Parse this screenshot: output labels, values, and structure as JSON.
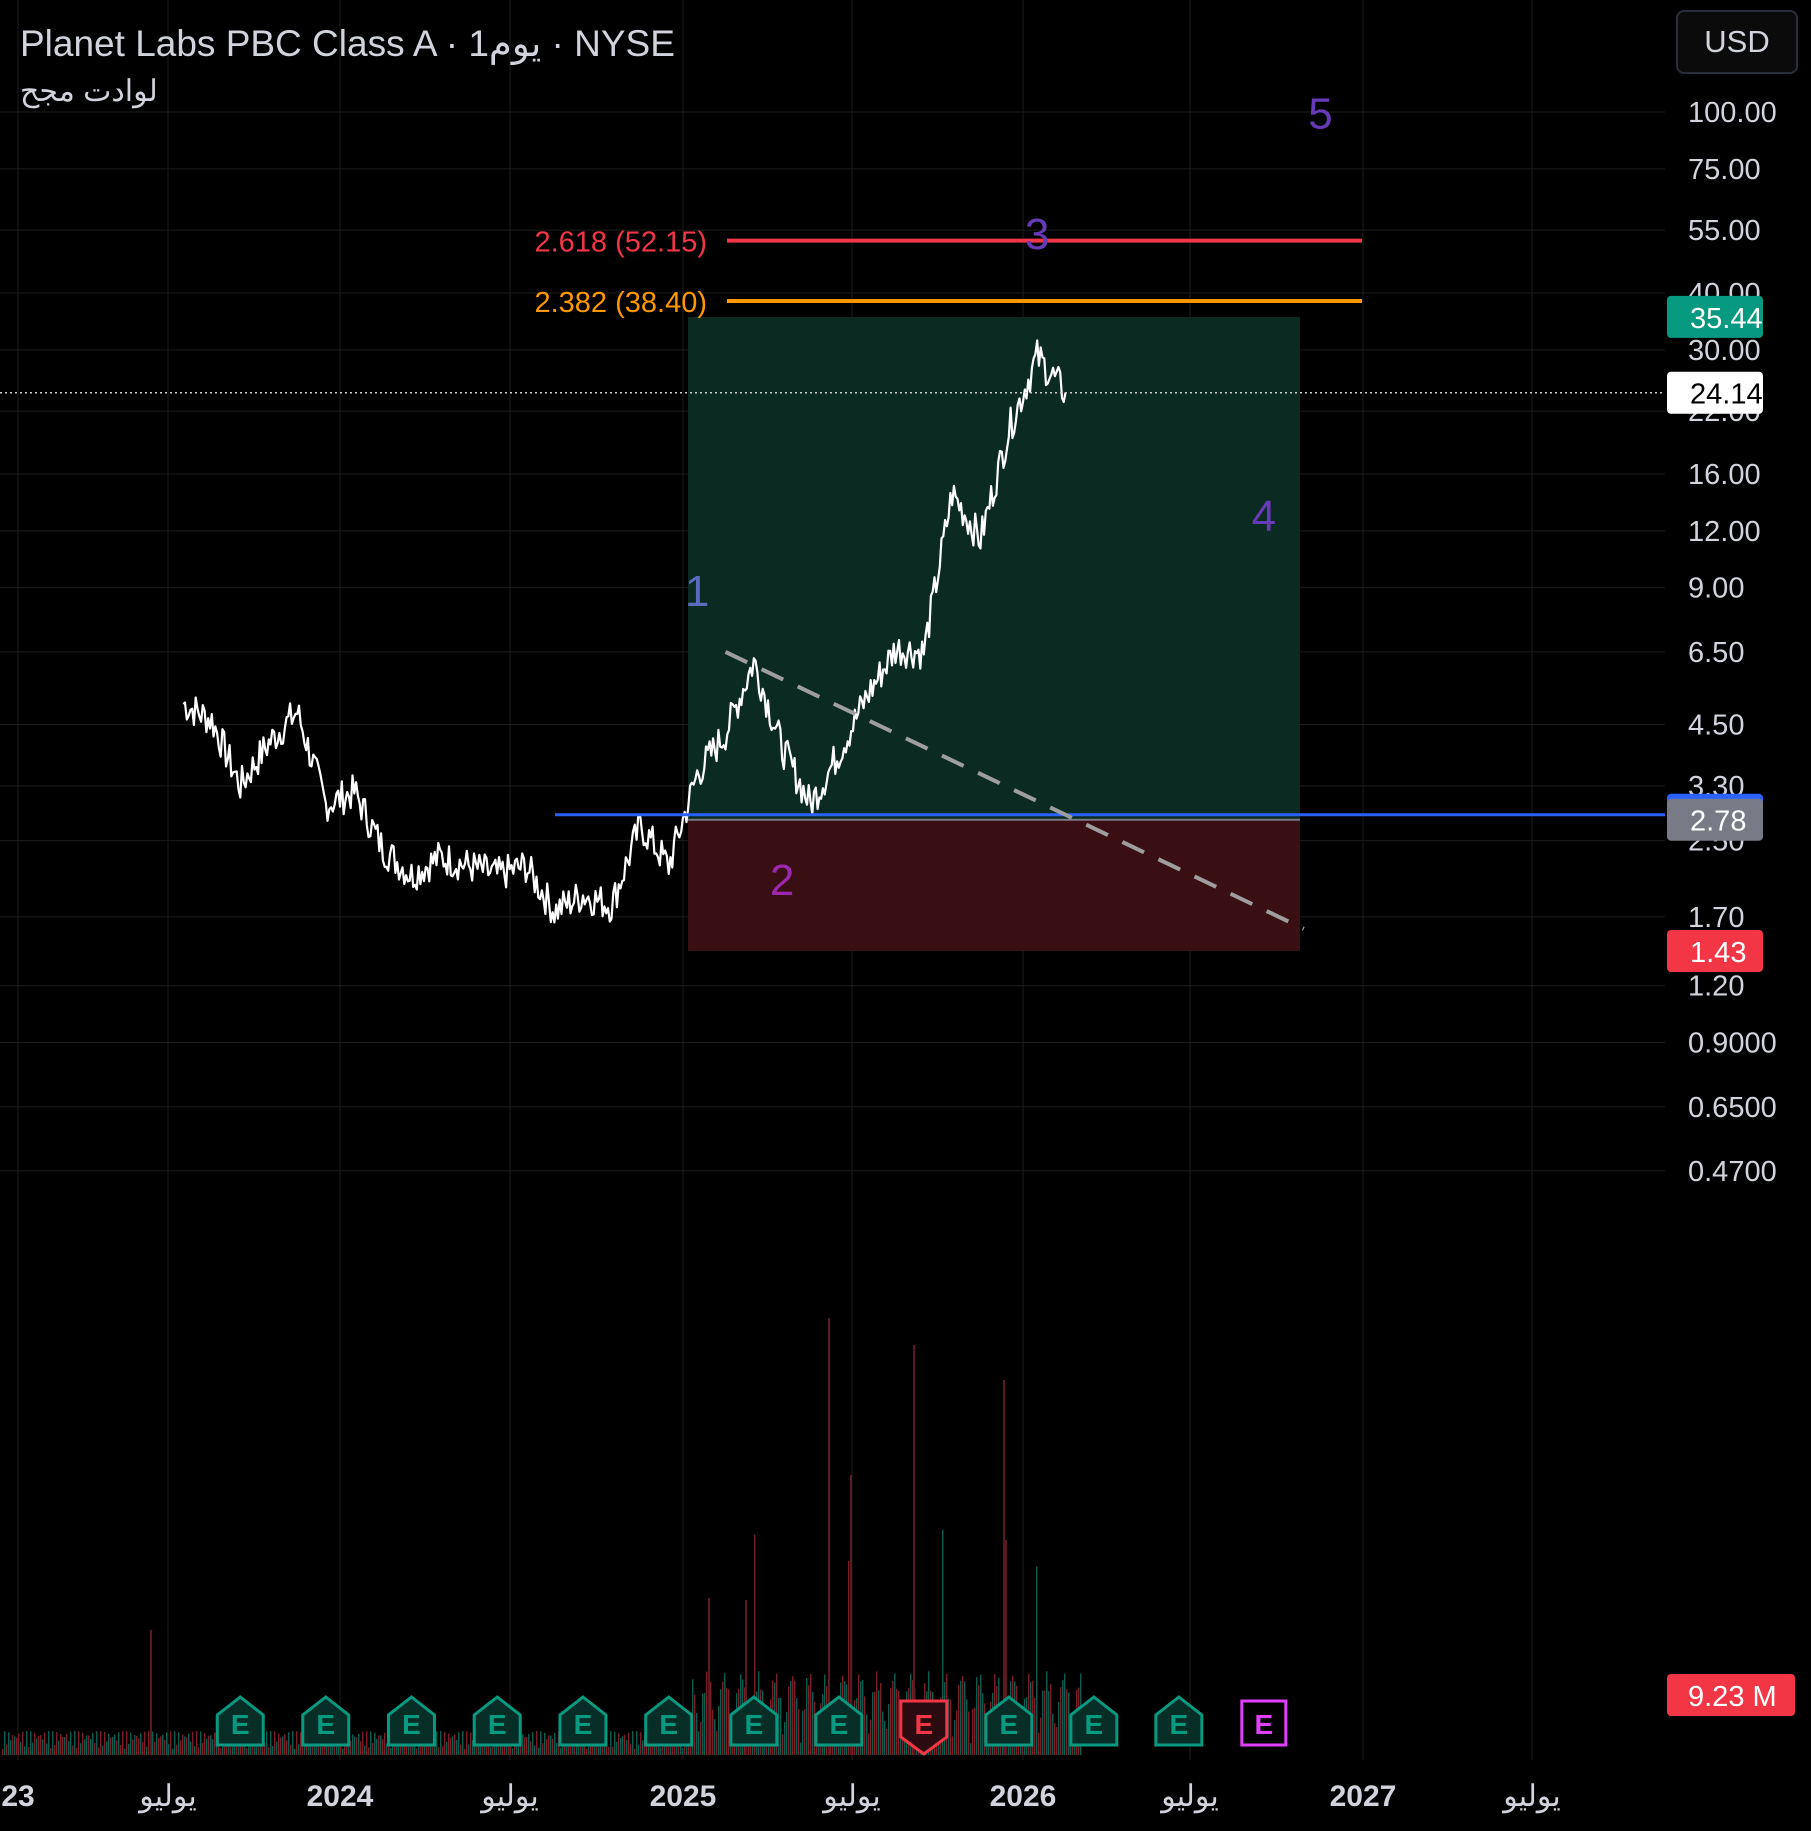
{
  "header": {
    "title": "Planet Labs PBC Class A · 1يوم · NYSE",
    "subtitle": "لوادت مجح",
    "currency": "USD"
  },
  "colors": {
    "background": "#000000",
    "grid": "#1c1c1c",
    "price_line": "#ffffff",
    "fib_2618": "#f23645",
    "fib_2382": "#ff9800",
    "support_line": "#2962ff",
    "profit_zone": "#0b2a22",
    "loss_zone": "#3a0f14",
    "trend_dashed": "#9e9e9e",
    "wave_label": "#7c4dff",
    "earnings_green": "#089981",
    "earnings_red": "#f23645",
    "earnings_magenta": "#e040fb"
  },
  "chart_data": {
    "type": "line",
    "scale": "log",
    "grid": true,
    "x_axis_ticks": [
      "23",
      "يوليو",
      "2024",
      "يوليو",
      "2025",
      "يوليو",
      "2026",
      "يوليو",
      "2027",
      "يوليو"
    ],
    "y_axis_ticks": [
      "100.00",
      "75.00",
      "55.00",
      "40.00",
      "30.00",
      "22.00",
      "16.00",
      "12.00",
      "9.00",
      "6.50",
      "4.50",
      "3.30",
      "2.50",
      "1.70",
      "1.20",
      "0.9000",
      "0.6500",
      "0.4700"
    ],
    "ylim": [
      0.35,
      120
    ],
    "x": [
      "2023-07",
      "2023-08",
      "2023-09",
      "2023-10",
      "2023-11",
      "2023-12",
      "2024-01",
      "2024-02",
      "2024-03",
      "2024-04",
      "2024-05",
      "2024-06",
      "2024-07",
      "2024-08",
      "2024-09",
      "2024-10",
      "2024-11",
      "2024-12",
      "2025-01",
      "2025-02",
      "2025-03",
      "2025-04",
      "2025-05",
      "2025-06",
      "2025-07",
      "2025-08",
      "2025-09",
      "2025-10",
      "2025-11",
      "2025-12",
      "2026-01",
      "2026-02"
    ],
    "series": [
      {
        "values": [
          5.0,
          4.6,
          3.3,
          4.1,
          4.8,
          3.0,
          3.2,
          2.4,
          2.1,
          2.3,
          2.2,
          2.1,
          2.2,
          1.75,
          1.9,
          1.8,
          2.7,
          2.2,
          3.5,
          4.3,
          6.2,
          4.0,
          3.0,
          3.9,
          5.2,
          6.6,
          6.5,
          14.5,
          11.5,
          20.0,
          29.0,
          24.14
        ]
      }
    ],
    "fib_levels": [
      {
        "label": "2.618 (52.15)",
        "value": 52.15
      },
      {
        "label": "2.382 (38.40)",
        "value": 38.4
      }
    ],
    "position": {
      "target": 35.44,
      "entry": 2.78,
      "stop": 1.43
    },
    "support": 2.85,
    "current_price": 24.14,
    "trendline": [
      {
        "x": "2025-02",
        "y": 6.5
      },
      {
        "x": "2026-09",
        "y": 1.6
      }
    ],
    "wave_labels": [
      {
        "label": "1",
        "x": "2025-01",
        "y": 8.2
      },
      {
        "label": "2",
        "x": "2025-04",
        "y": 1.9
      },
      {
        "label": "3",
        "x": "2026-01",
        "y": 50
      },
      {
        "label": "4",
        "x": "2026-09",
        "y": 12
      },
      {
        "label": "5",
        "x": "2026-11",
        "y": 92
      }
    ],
    "price_labels": [
      {
        "text": "35.44",
        "color": "#089981",
        "value": 35.44
      },
      {
        "text": "24.14",
        "color": "#ffffff",
        "value": 24.14
      },
      {
        "text": "2.85",
        "color": "#2962ff",
        "value": 2.85
      },
      {
        "text": "2.78",
        "color": "#787b86",
        "value": 2.78
      },
      {
        "text": "1.43",
        "color": "#f23645",
        "value": 1.43
      }
    ],
    "volume_label": "9.23 M",
    "earnings": [
      {
        "x": "2023-09",
        "kind": "green"
      },
      {
        "x": "2023-12",
        "kind": "green"
      },
      {
        "x": "2024-03",
        "kind": "green"
      },
      {
        "x": "2024-06",
        "kind": "green"
      },
      {
        "x": "2024-09",
        "kind": "green"
      },
      {
        "x": "2024-12",
        "kind": "green"
      },
      {
        "x": "2025-03",
        "kind": "green"
      },
      {
        "x": "2025-06",
        "kind": "green"
      },
      {
        "x": "2025-09",
        "kind": "red"
      },
      {
        "x": "2025-12",
        "kind": "green"
      },
      {
        "x": "2026-03",
        "kind": "green"
      },
      {
        "x": "2026-06",
        "kind": "green"
      },
      {
        "x": "2026-09",
        "kind": "magenta"
      }
    ],
    "earnings_letter": "E"
  }
}
